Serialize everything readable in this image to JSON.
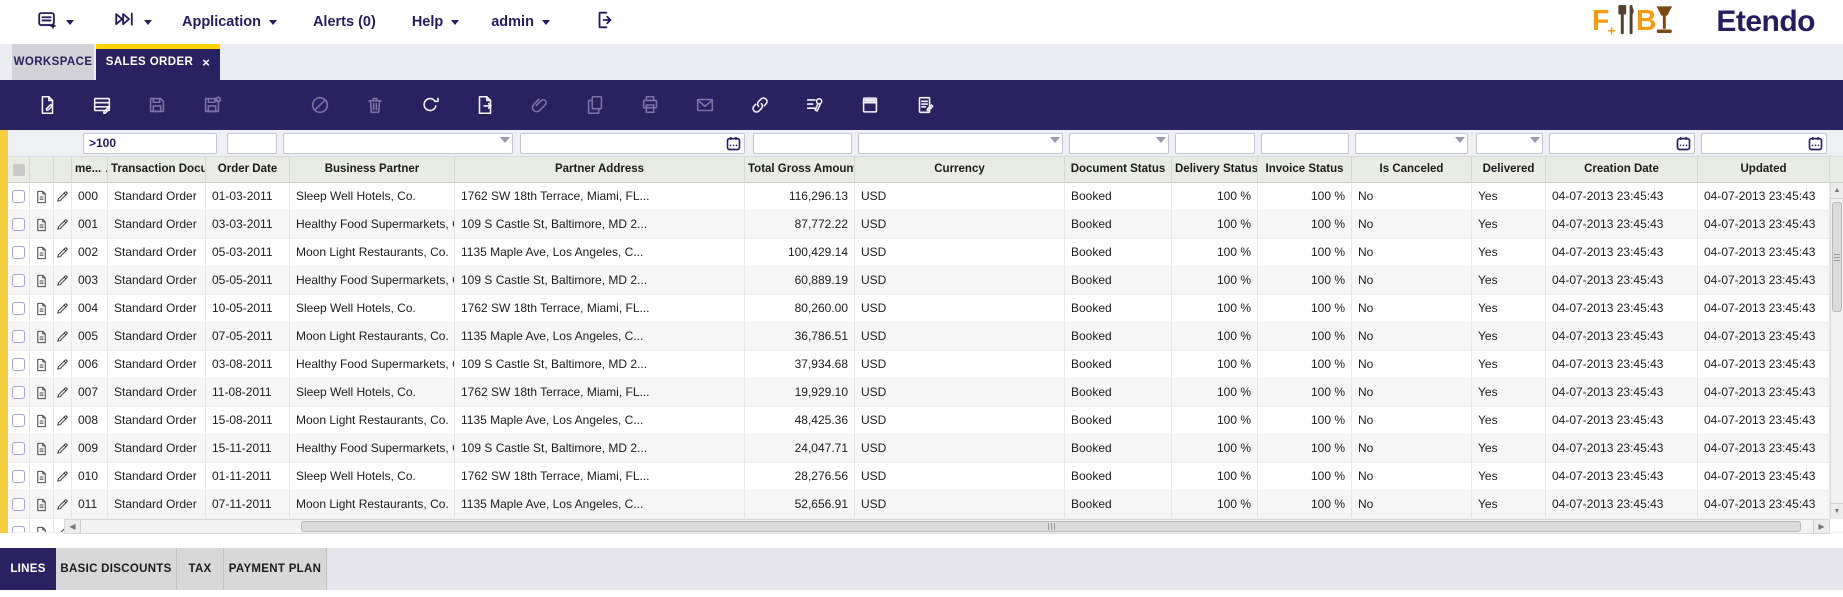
{
  "nav": {
    "application": "Application",
    "alerts": "Alerts (0)",
    "help": "Help",
    "user": "admin",
    "brand": "Etendo"
  },
  "window_tabs": {
    "workspace": "WORKSPACE",
    "sales_order": "SALES ORDER",
    "close": "×"
  },
  "toolbar": {
    "icons": [
      {
        "name": "new-document",
        "enabled": true
      },
      {
        "name": "new-row-in-grid",
        "enabled": true
      },
      {
        "name": "save",
        "enabled": false
      },
      {
        "name": "save-and-new",
        "enabled": false
      },
      {
        "name": "undo",
        "enabled": false
      },
      {
        "name": "delete",
        "enabled": false
      },
      {
        "name": "refresh",
        "enabled": true
      },
      {
        "name": "export-to-file",
        "enabled": true
      },
      {
        "name": "attachments",
        "enabled": false
      },
      {
        "name": "clone-record",
        "enabled": false
      },
      {
        "name": "print",
        "enabled": false
      },
      {
        "name": "email",
        "enabled": false
      },
      {
        "name": "copy-link",
        "enabled": true
      },
      {
        "name": "grid-configuration",
        "enabled": true
      },
      {
        "name": "maximize-grid",
        "enabled": true
      },
      {
        "name": "form-view",
        "enabled": true
      }
    ]
  },
  "grid": {
    "filters": {
      "document_no": ">100"
    },
    "sort": {
      "column": "document_no",
      "direction": "asc"
    },
    "columns": [
      {
        "key": "document_no",
        "label": "me...",
        "sorted": "asc"
      },
      {
        "key": "transaction_document",
        "label": "Transaction Docu..."
      },
      {
        "key": "order_date",
        "label": "Order Date"
      },
      {
        "key": "business_partner",
        "label": "Business Partner"
      },
      {
        "key": "partner_address",
        "label": "Partner Address"
      },
      {
        "key": "total_gross_amount",
        "label": "Total Gross Amount"
      },
      {
        "key": "currency",
        "label": "Currency"
      },
      {
        "key": "document_status",
        "label": "Document Status"
      },
      {
        "key": "delivery_status",
        "label": "Delivery Status"
      },
      {
        "key": "invoice_status",
        "label": "Invoice Status"
      },
      {
        "key": "is_canceled",
        "label": "Is Canceled"
      },
      {
        "key": "delivered",
        "label": "Delivered"
      },
      {
        "key": "creation_date",
        "label": "Creation Date"
      },
      {
        "key": "updated",
        "label": "Updated"
      }
    ],
    "rows": [
      {
        "document_no": "000",
        "transaction_document": "Standard Order",
        "order_date": "01-03-2011",
        "business_partner": "Sleep Well Hotels, Co.",
        "partner_address": "1762 SW 18th Terrace, Miami, FL...",
        "total_gross_amount": "116,296.13",
        "currency": "USD",
        "document_status": "Booked",
        "delivery_status": "100 %",
        "invoice_status": "100 %",
        "is_canceled": "No",
        "delivered": "Yes",
        "creation_date": "04-07-2013 23:45:43",
        "updated": "04-07-2013 23:45:43"
      },
      {
        "document_no": "001",
        "transaction_document": "Standard Order",
        "order_date": "03-03-2011",
        "business_partner": "Healthy Food Supermarkets, Co.",
        "partner_address": "109 S Castle St, Baltimore, MD 2...",
        "total_gross_amount": "87,772.22",
        "currency": "USD",
        "document_status": "Booked",
        "delivery_status": "100 %",
        "invoice_status": "100 %",
        "is_canceled": "No",
        "delivered": "Yes",
        "creation_date": "04-07-2013 23:45:43",
        "updated": "04-07-2013 23:45:43"
      },
      {
        "document_no": "002",
        "transaction_document": "Standard Order",
        "order_date": "05-03-2011",
        "business_partner": "Moon Light Restaurants, Co.",
        "partner_address": "1135 Maple Ave, Los Angeles, C...",
        "total_gross_amount": "100,429.14",
        "currency": "USD",
        "document_status": "Booked",
        "delivery_status": "100 %",
        "invoice_status": "100 %",
        "is_canceled": "No",
        "delivered": "Yes",
        "creation_date": "04-07-2013 23:45:43",
        "updated": "04-07-2013 23:45:43"
      },
      {
        "document_no": "003",
        "transaction_document": "Standard Order",
        "order_date": "05-05-2011",
        "business_partner": "Healthy Food Supermarkets, Co.",
        "partner_address": "109 S Castle St, Baltimore, MD 2...",
        "total_gross_amount": "60,889.19",
        "currency": "USD",
        "document_status": "Booked",
        "delivery_status": "100 %",
        "invoice_status": "100 %",
        "is_canceled": "No",
        "delivered": "Yes",
        "creation_date": "04-07-2013 23:45:43",
        "updated": "04-07-2013 23:45:43"
      },
      {
        "document_no": "004",
        "transaction_document": "Standard Order",
        "order_date": "10-05-2011",
        "business_partner": "Sleep Well Hotels, Co.",
        "partner_address": "1762 SW 18th Terrace, Miami, FL...",
        "total_gross_amount": "80,260.00",
        "currency": "USD",
        "document_status": "Booked",
        "delivery_status": "100 %",
        "invoice_status": "100 %",
        "is_canceled": "No",
        "delivered": "Yes",
        "creation_date": "04-07-2013 23:45:43",
        "updated": "04-07-2013 23:45:43"
      },
      {
        "document_no": "005",
        "transaction_document": "Standard Order",
        "order_date": "07-05-2011",
        "business_partner": "Moon Light Restaurants, Co.",
        "partner_address": "1135 Maple Ave, Los Angeles, C...",
        "total_gross_amount": "36,786.51",
        "currency": "USD",
        "document_status": "Booked",
        "delivery_status": "100 %",
        "invoice_status": "100 %",
        "is_canceled": "No",
        "delivered": "Yes",
        "creation_date": "04-07-2013 23:45:43",
        "updated": "04-07-2013 23:45:43"
      },
      {
        "document_no": "006",
        "transaction_document": "Standard Order",
        "order_date": "03-08-2011",
        "business_partner": "Healthy Food Supermarkets, Co.",
        "partner_address": "109 S Castle St, Baltimore, MD 2...",
        "total_gross_amount": "37,934.68",
        "currency": "USD",
        "document_status": "Booked",
        "delivery_status": "100 %",
        "invoice_status": "100 %",
        "is_canceled": "No",
        "delivered": "Yes",
        "creation_date": "04-07-2013 23:45:43",
        "updated": "04-07-2013 23:45:43"
      },
      {
        "document_no": "007",
        "transaction_document": "Standard Order",
        "order_date": "11-08-2011",
        "business_partner": "Sleep Well Hotels, Co.",
        "partner_address": "1762 SW 18th Terrace, Miami, FL...",
        "total_gross_amount": "19,929.10",
        "currency": "USD",
        "document_status": "Booked",
        "delivery_status": "100 %",
        "invoice_status": "100 %",
        "is_canceled": "No",
        "delivered": "Yes",
        "creation_date": "04-07-2013 23:45:43",
        "updated": "04-07-2013 23:45:43"
      },
      {
        "document_no": "008",
        "transaction_document": "Standard Order",
        "order_date": "15-08-2011",
        "business_partner": "Moon Light Restaurants, Co.",
        "partner_address": "1135 Maple Ave, Los Angeles, C...",
        "total_gross_amount": "48,425.36",
        "currency": "USD",
        "document_status": "Booked",
        "delivery_status": "100 %",
        "invoice_status": "100 %",
        "is_canceled": "No",
        "delivered": "Yes",
        "creation_date": "04-07-2013 23:45:43",
        "updated": "04-07-2013 23:45:43"
      },
      {
        "document_no": "009",
        "transaction_document": "Standard Order",
        "order_date": "15-11-2011",
        "business_partner": "Healthy Food Supermarkets, Co.",
        "partner_address": "109 S Castle St, Baltimore, MD 2...",
        "total_gross_amount": "24,047.71",
        "currency": "USD",
        "document_status": "Booked",
        "delivery_status": "100 %",
        "invoice_status": "100 %",
        "is_canceled": "No",
        "delivered": "Yes",
        "creation_date": "04-07-2013 23:45:43",
        "updated": "04-07-2013 23:45:43"
      },
      {
        "document_no": "010",
        "transaction_document": "Standard Order",
        "order_date": "01-11-2011",
        "business_partner": "Sleep Well Hotels, Co.",
        "partner_address": "1762 SW 18th Terrace, Miami, FL...",
        "total_gross_amount": "28,276.56",
        "currency": "USD",
        "document_status": "Booked",
        "delivery_status": "100 %",
        "invoice_status": "100 %",
        "is_canceled": "No",
        "delivered": "Yes",
        "creation_date": "04-07-2013 23:45:43",
        "updated": "04-07-2013 23:45:43"
      },
      {
        "document_no": "011",
        "transaction_document": "Standard Order",
        "order_date": "07-11-2011",
        "business_partner": "Moon Light Restaurants, Co.",
        "partner_address": "1135 Maple Ave, Los Angeles, C...",
        "total_gross_amount": "52,656.91",
        "currency": "USD",
        "document_status": "Booked",
        "delivery_status": "100 %",
        "invoice_status": "100 %",
        "is_canceled": "No",
        "delivered": "Yes",
        "creation_date": "04-07-2013 23:45:43",
        "updated": "04-07-2013 23:45:43"
      }
    ]
  },
  "child_tabs": [
    {
      "label": "LINES",
      "active": true
    },
    {
      "label": "BASIC DISCOUNTS",
      "active": false
    },
    {
      "label": "TAX",
      "active": false
    },
    {
      "label": "PAYMENT PLAN",
      "active": false
    }
  ],
  "colors": {
    "purple": "#2a2160",
    "tab_yellow": "#ffd200",
    "strip_yellow": "#f6ce3d",
    "header_bg": "#e9ece2",
    "logo_orange": "#f59b0c",
    "logo_brown": "#7a4a12"
  }
}
